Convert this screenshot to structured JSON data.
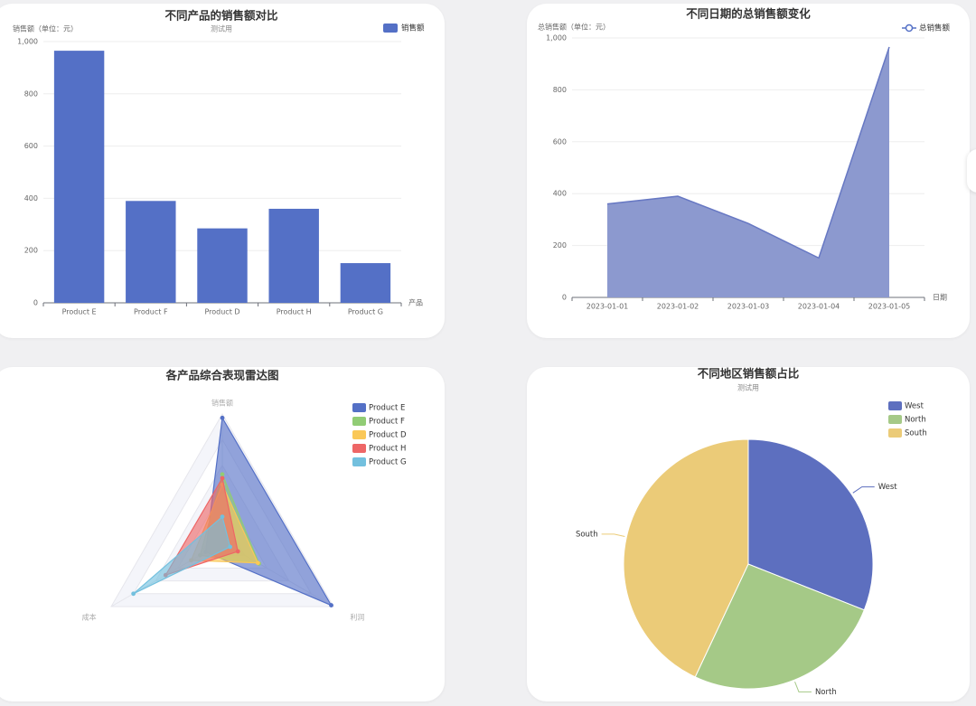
{
  "colors": {
    "blue": "#5470c6",
    "green": "#91cc75",
    "yellow": "#fac858",
    "red": "#ee6666",
    "cyan": "#73c0de",
    "pie_blue": "#5d6fbf",
    "pie_green": "#a5c987",
    "pie_yellow": "#ebcb78"
  },
  "chart_data": [
    {
      "type": "bar",
      "title": "不同产品的销售额对比",
      "subtitle": "测试用",
      "ylabel": "销售额（单位：元）",
      "xlabel": "产品",
      "legend": [
        "销售额"
      ],
      "legend_position": "top-right",
      "categories": [
        "Product E",
        "Product F",
        "Product D",
        "Product H",
        "Product G"
      ],
      "values": [
        965,
        390,
        285,
        360,
        152
      ],
      "ylim": [
        0,
        1000
      ],
      "yticks": [
        0,
        200,
        400,
        600,
        800,
        1000
      ],
      "ytick_labels": [
        "0",
        "200",
        "400",
        "600",
        "800",
        "1,000"
      ],
      "grid": true
    },
    {
      "type": "area",
      "title": "不同日期的总销售额变化",
      "ylabel": "总销售额（单位：元）",
      "xlabel": "日期",
      "legend": [
        "总销售额"
      ],
      "legend_position": "top-right",
      "categories": [
        "2023-01-01",
        "2023-01-02",
        "2023-01-03",
        "2023-01-04",
        "2023-01-05"
      ],
      "values": [
        360,
        390,
        285,
        152,
        965
      ],
      "ylim": [
        0,
        1000
      ],
      "yticks": [
        0,
        200,
        400,
        600,
        800,
        1000
      ],
      "ytick_labels": [
        "0",
        "200",
        "400",
        "600",
        "800",
        "1,000"
      ],
      "grid": true
    },
    {
      "type": "radar",
      "title": "各产品综合表现雷达图",
      "indicators": [
        "销售额",
        "利润",
        "成本"
      ],
      "legend": [
        "Product E",
        "Product F",
        "Product D",
        "Product H",
        "Product G"
      ],
      "legend_position": "top-right",
      "series": [
        {
          "name": "Product E",
          "values": [
            0.97,
            0.98,
            0.15
          ]
        },
        {
          "name": "Product F",
          "values": [
            0.53,
            0.33,
            0.2
          ]
        },
        {
          "name": "Product D",
          "values": [
            0.45,
            0.32,
            0.28
          ]
        },
        {
          "name": "Product H",
          "values": [
            0.5,
            0.14,
            0.51
          ]
        },
        {
          "name": "Product G",
          "values": [
            0.2,
            0.07,
            0.8
          ]
        }
      ]
    },
    {
      "type": "pie",
      "title": "不同地区销售额占比",
      "subtitle": "测试用",
      "legend": [
        "West",
        "North",
        "South"
      ],
      "legend_position": "top-right",
      "slices": [
        {
          "name": "West",
          "value": 31
        },
        {
          "name": "North",
          "value": 26
        },
        {
          "name": "South",
          "value": 43
        }
      ]
    }
  ]
}
